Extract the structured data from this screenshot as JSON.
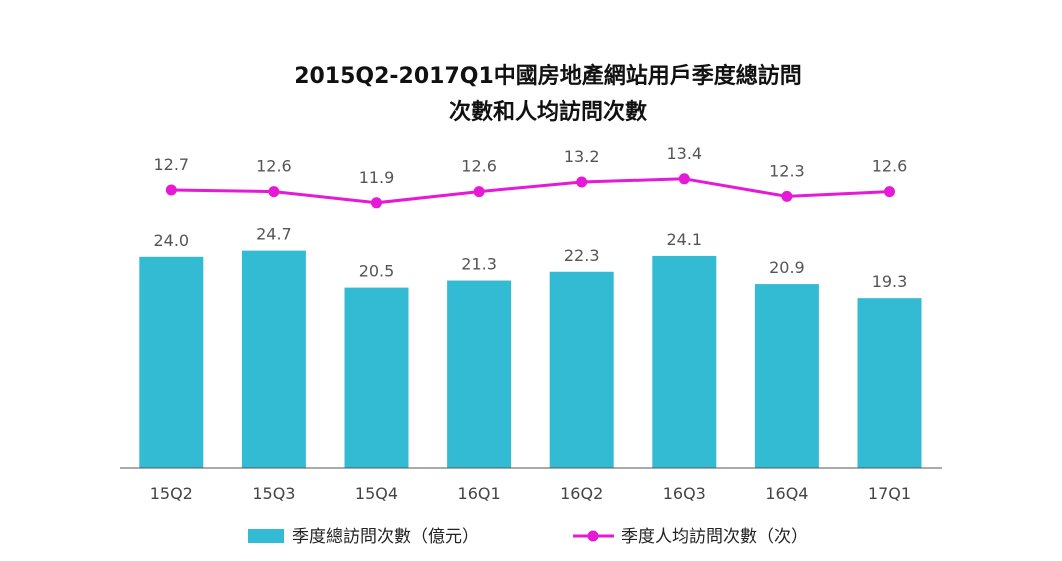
{
  "chart_data": {
    "type": "bar",
    "title": [
      "2015Q2-2017Q1中國房地產網站用戶季度總訪問",
      "次數和人均訪問次數"
    ],
    "categories": [
      "15Q2",
      "15Q3",
      "15Q4",
      "16Q1",
      "16Q2",
      "16Q3",
      "16Q4",
      "17Q1"
    ],
    "series": [
      {
        "name": "季度總訪問次數（億元）",
        "type": "bar",
        "color": "#33bbd3",
        "values": [
          24.0,
          24.7,
          20.5,
          21.3,
          22.3,
          24.1,
          20.9,
          19.3
        ],
        "labels": [
          "24.0",
          "24.7",
          "20.5",
          "21.3",
          "22.3",
          "24.1",
          "20.9",
          "19.3"
        ]
      },
      {
        "name": "季度人均訪問次數（次）",
        "type": "line",
        "color": "#e619d6",
        "values": [
          12.7,
          12.6,
          11.9,
          12.6,
          13.2,
          13.4,
          12.3,
          12.6
        ],
        "labels": [
          "12.7",
          "12.6",
          "11.9",
          "12.6",
          "13.2",
          "13.4",
          "12.3",
          "12.6"
        ]
      }
    ],
    "legend_position": "bottom",
    "grid": false
  }
}
